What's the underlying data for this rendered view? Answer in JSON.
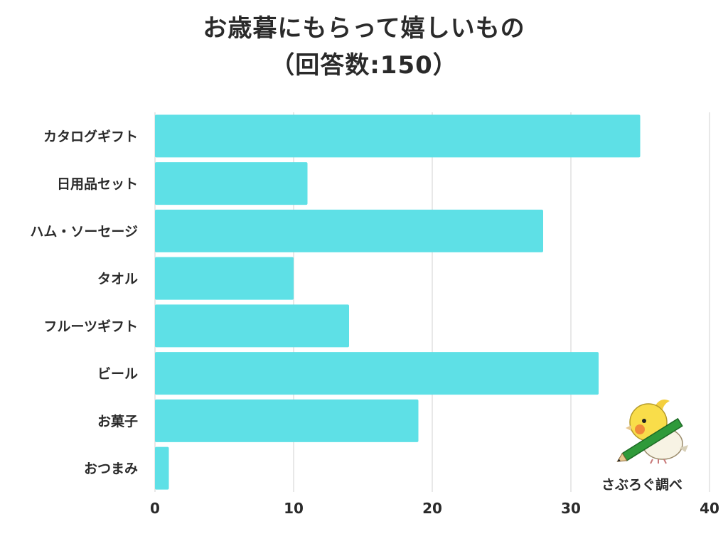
{
  "chart_data": {
    "type": "bar",
    "orientation": "horizontal",
    "title": "お歳暮にもらって嬉しいもの",
    "subtitle": "（回答数:150）",
    "categories": [
      "カタログギフト",
      "日用品セット",
      "ハム・ソーセージ",
      "タオル",
      "フルーツギフト",
      "ビール",
      "お菓子",
      "おつまみ"
    ],
    "values": [
      35,
      11,
      28,
      10,
      14,
      32,
      19,
      1
    ],
    "xlim": [
      0,
      40
    ],
    "xticks": [
      "0",
      "10",
      "20",
      "30",
      "40"
    ],
    "grid": true,
    "bar_color": "#5ee0e6",
    "grid_color": "#e0e0e0"
  },
  "credit": {
    "text": "さぶろぐ調べ",
    "mascot_icon": "cockatiel-with-pencil-icon"
  }
}
